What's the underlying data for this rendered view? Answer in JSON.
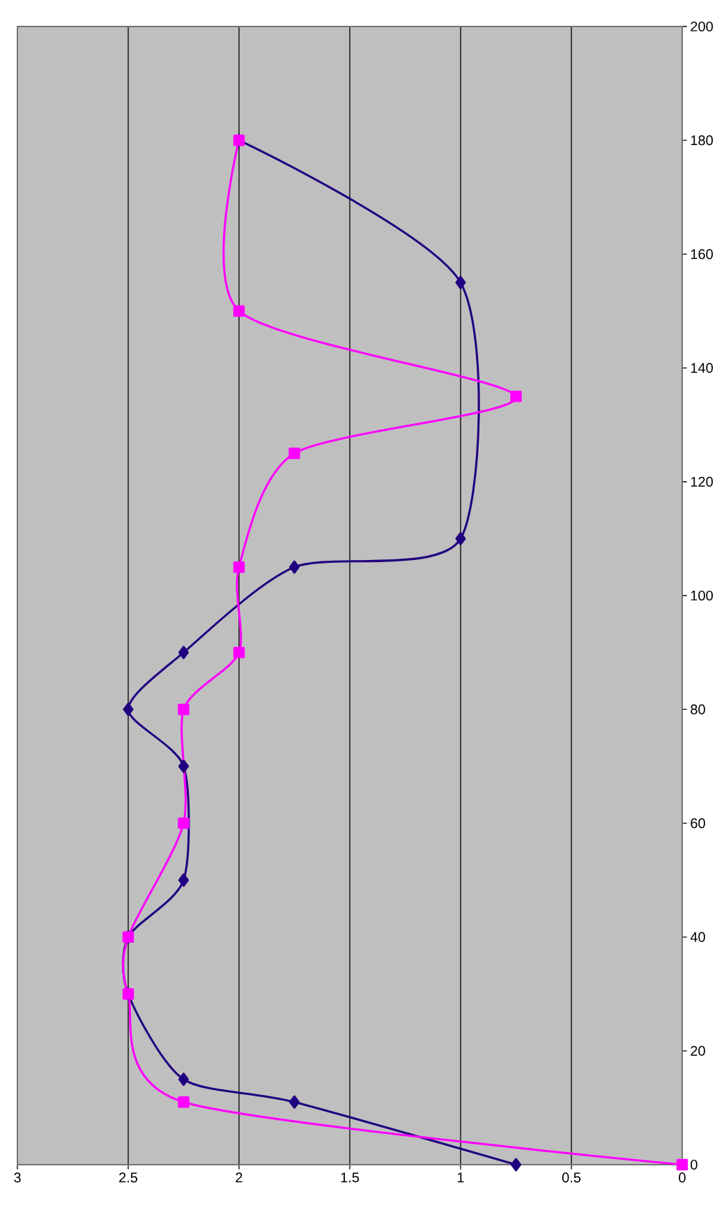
{
  "chart_data": {
    "type": "line",
    "series": [
      {
        "color": "#200080",
        "marker": "diamond",
        "x": [
          0.75,
          1.75,
          2.25,
          2.5,
          2.5,
          2.25,
          2.25,
          2.5,
          2.25,
          1.75,
          1,
          1,
          2
        ],
        "values": [
          0,
          11,
          15,
          30,
          40,
          50,
          70,
          80,
          90,
          105,
          110,
          155,
          180
        ]
      },
      {
        "color": "#ff00ff",
        "marker": "square",
        "x": [
          0,
          2.25,
          2.5,
          2.5,
          2.25,
          2.25,
          2,
          2,
          1.75,
          0.75,
          2,
          2
        ],
        "values": [
          0,
          11,
          30,
          40,
          60,
          80,
          90,
          105,
          125,
          135,
          150,
          180
        ]
      }
    ],
    "xlim": [
      3,
      0
    ],
    "xticks": [
      0,
      0.5,
      1,
      1.5,
      2,
      2.5,
      3
    ],
    "ylim": [
      0,
      200
    ],
    "yticks": [
      0,
      20,
      40,
      60,
      80,
      100,
      120,
      140,
      160,
      180,
      200
    ],
    "grid": "x",
    "line_style": "solid"
  }
}
